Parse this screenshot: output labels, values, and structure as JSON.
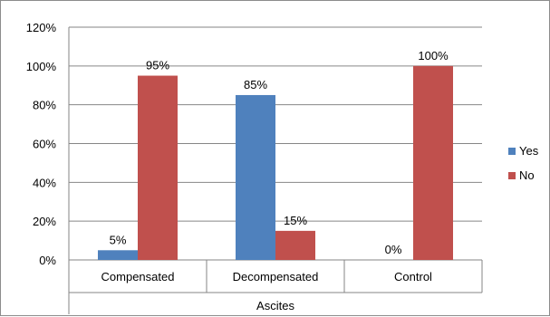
{
  "chart_data": {
    "type": "bar",
    "categories": [
      "Compensated",
      "Decompensated",
      "Control"
    ],
    "group_label": "Ascites",
    "series": [
      {
        "name": "Yes",
        "values": [
          5,
          85,
          0
        ],
        "labels": [
          "5%",
          "85%",
          "0%"
        ],
        "color": "#4F81BD"
      },
      {
        "name": "No",
        "values": [
          95,
          15,
          100
        ],
        "labels": [
          "95%",
          "15%",
          "100%"
        ],
        "color": "#C0504D"
      }
    ],
    "ylim": [
      0,
      120
    ],
    "yticks": [
      "0%",
      "20%",
      "40%",
      "60%",
      "80%",
      "100%",
      "120%"
    ],
    "grid": true,
    "legend_position": "right"
  }
}
